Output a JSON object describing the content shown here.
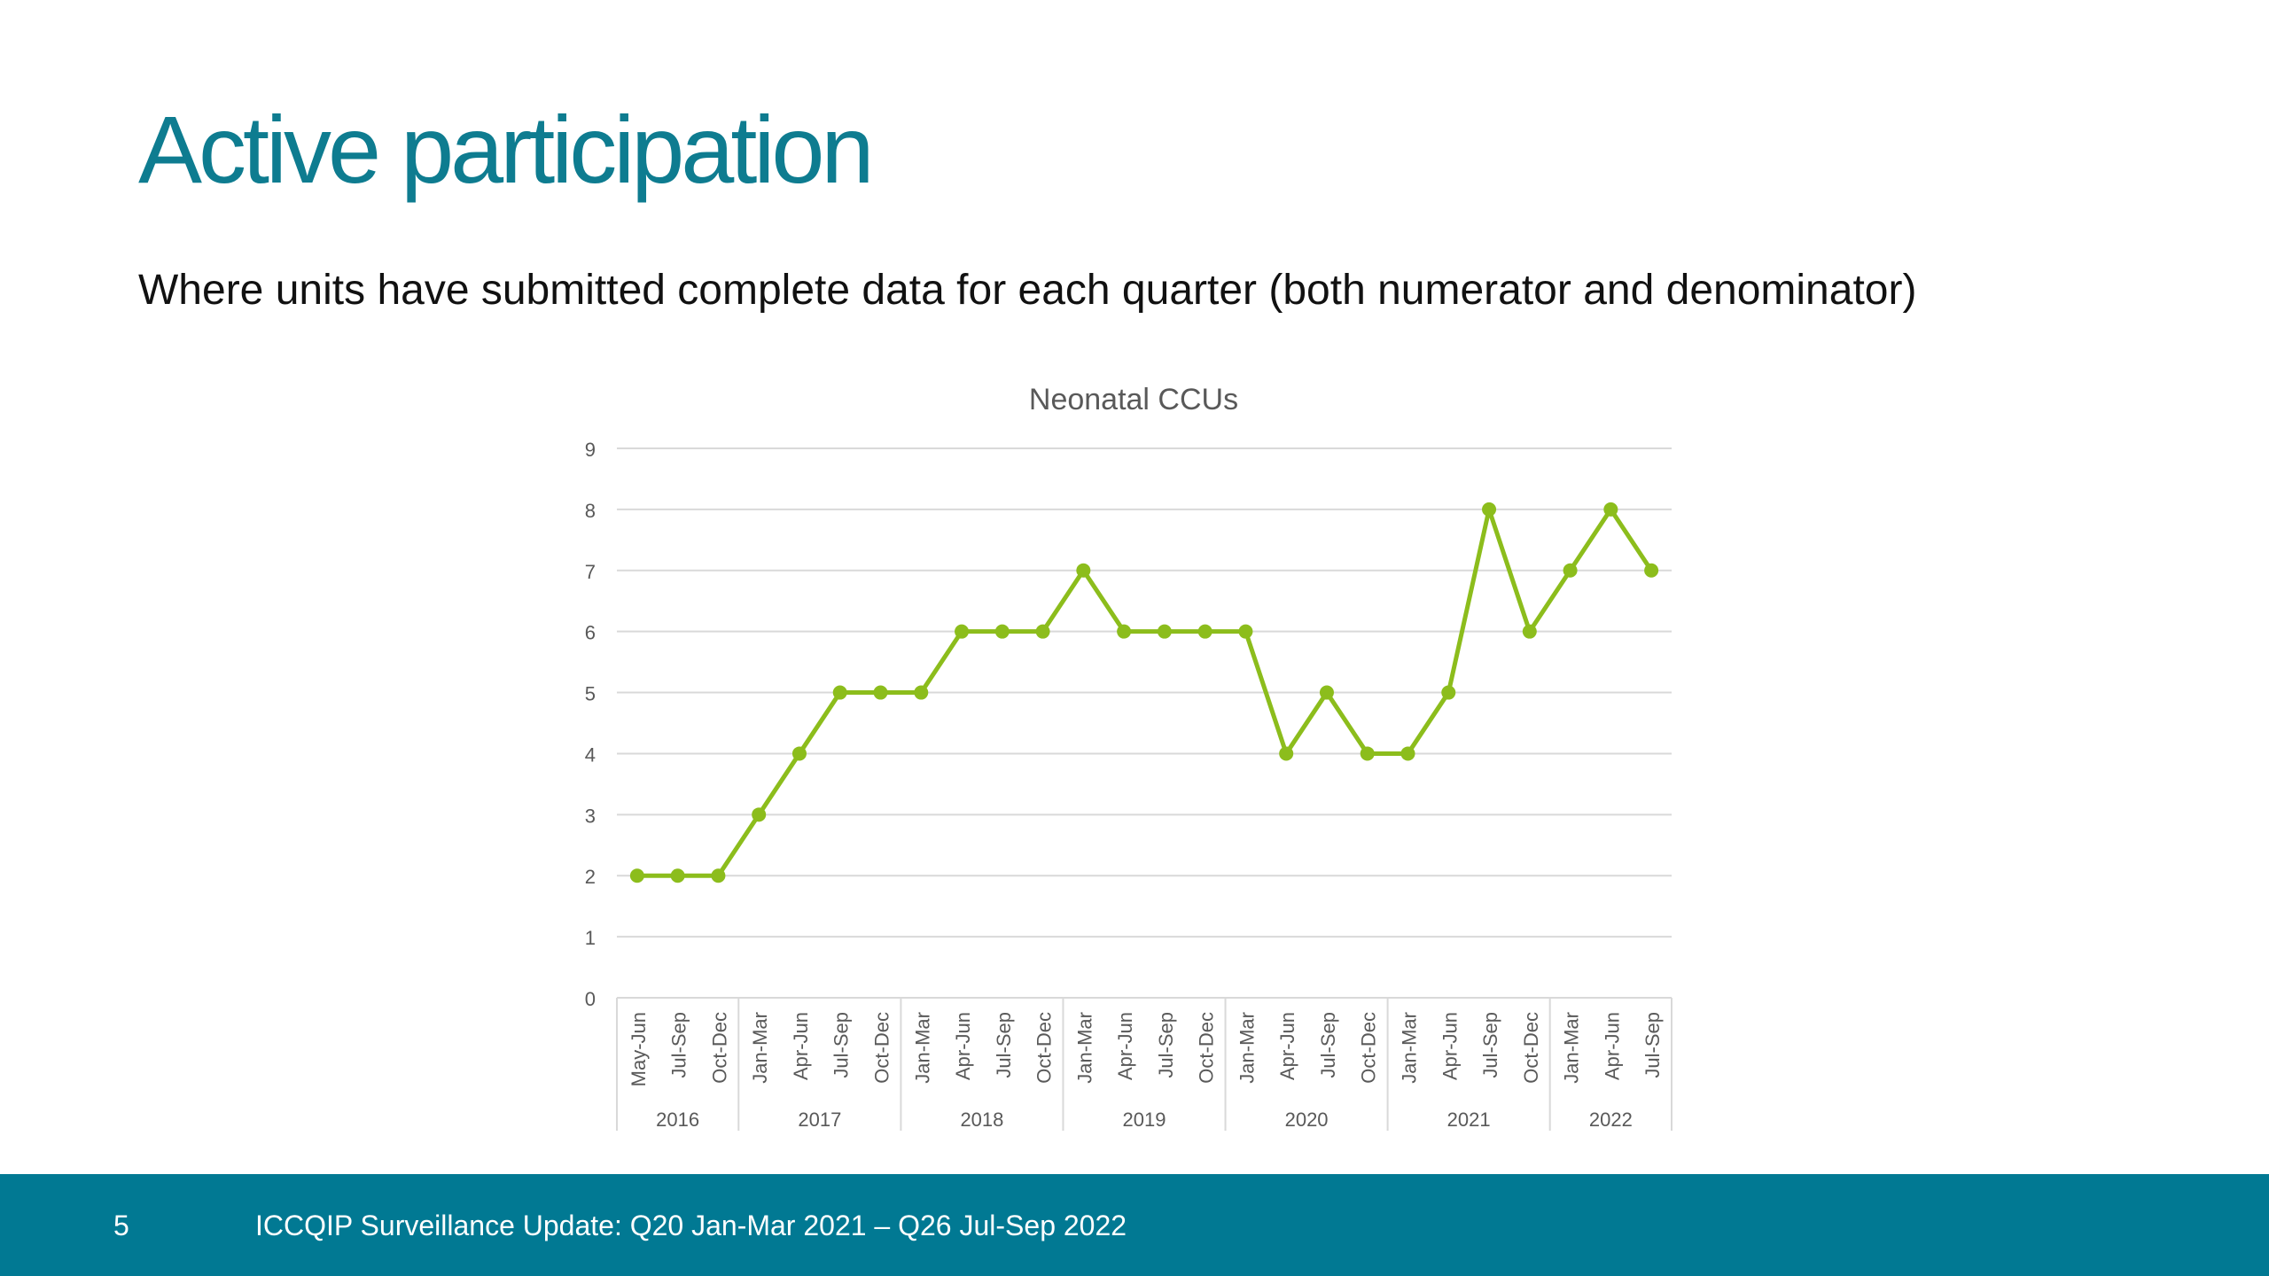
{
  "slide": {
    "title": "Active participation",
    "subtitle": "Where units have submitted complete data for each quarter (both numerator and denominator)"
  },
  "footer": {
    "page_number": "5",
    "text": "ICCQIP Surveillance Update: Q20 Jan-Mar 2021 – Q26 Jul-Sep 2022"
  },
  "colors": {
    "title": "#0e7c90",
    "footer_bg": "#017993",
    "series_line": "#8cbd1c",
    "gridline": "#d9d9d9",
    "tick_text": "#595959"
  },
  "chart_data": {
    "type": "line",
    "title": "Neonatal CCUs",
    "xlabel": "",
    "ylabel": "",
    "ylim": [
      0,
      9
    ],
    "yticks": [
      0,
      1,
      2,
      3,
      4,
      5,
      6,
      7,
      8,
      9
    ],
    "grid": true,
    "legend": "none",
    "markers": true,
    "categories": [
      "May-Jun",
      "Jul-Sep",
      "Oct-Dec",
      "Jan-Mar",
      "Apr-Jun",
      "Jul-Sep",
      "Oct-Dec",
      "Jan-Mar",
      "Apr-Jun",
      "Jul-Sep",
      "Oct-Dec",
      "Jan-Mar",
      "Apr-Jun",
      "Jul-Sep",
      "Oct-Dec",
      "Jan-Mar",
      "Apr-Jun",
      "Jul-Sep",
      "Oct-Dec",
      "Jan-Mar",
      "Apr-Jun",
      "Jul-Sep",
      "Oct-Dec",
      "Jan-Mar",
      "Apr-Jun",
      "Jul-Sep"
    ],
    "groups": [
      {
        "label": "2016",
        "count": 3
      },
      {
        "label": "2017",
        "count": 4
      },
      {
        "label": "2018",
        "count": 4
      },
      {
        "label": "2019",
        "count": 4
      },
      {
        "label": "2020",
        "count": 4
      },
      {
        "label": "2021",
        "count": 4
      },
      {
        "label": "2022",
        "count": 3
      }
    ],
    "series": [
      {
        "values": [
          2,
          2,
          2,
          3,
          4,
          5,
          5,
          5,
          6,
          6,
          6,
          7,
          6,
          6,
          6,
          6,
          4,
          5,
          4,
          4,
          5,
          8,
          6,
          7,
          8,
          7
        ]
      }
    ]
  }
}
